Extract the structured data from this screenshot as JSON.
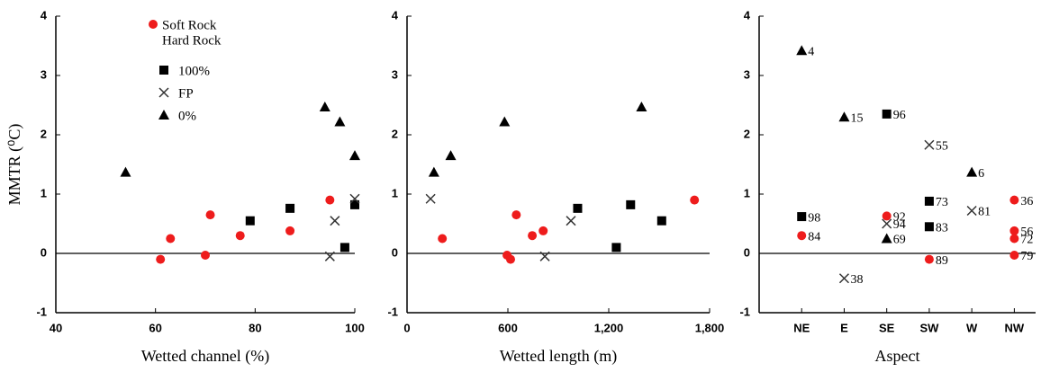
{
  "chart_data": [
    {
      "type": "scatter",
      "xlabel": "Wetted channel (%)",
      "ylabel": "MMTR (⁰C)",
      "xlim": [
        40,
        100
      ],
      "xticks": [
        40,
        60,
        80,
        100
      ],
      "ylim": [
        -1,
        4
      ],
      "yticks": [
        -1,
        0,
        1,
        2,
        3,
        4
      ],
      "hline": 0,
      "legend": "upper left",
      "legend_group_title": "Hard Rock",
      "series": [
        {
          "name": "Soft Rock",
          "color": "#ee1c1c",
          "marker": "circle",
          "x": [
            61,
            63,
            70,
            71,
            77,
            87,
            95
          ],
          "values": [
            -0.1,
            0.25,
            -0.03,
            0.65,
            0.3,
            0.38,
            0.9
          ]
        },
        {
          "name": "100%",
          "color": "#000000",
          "marker": "square",
          "x": [
            79,
            87,
            98,
            100
          ],
          "values": [
            0.55,
            0.76,
            0.1,
            0.82
          ]
        },
        {
          "name": "FP",
          "color": "#333333",
          "marker": "x",
          "x": [
            95,
            96,
            100
          ],
          "values": [
            -0.05,
            0.55,
            0.92
          ]
        },
        {
          "name": "0%",
          "color": "#000000",
          "marker": "triangle",
          "x": [
            54,
            94,
            97,
            100
          ],
          "values": [
            1.37,
            2.47,
            2.22,
            1.65
          ]
        }
      ]
    },
    {
      "type": "scatter",
      "xlabel": "Wetted length (m)",
      "xlim": [
        0,
        1800
      ],
      "xticks": [
        0,
        600,
        {
          "value": 1200,
          "label": "1,200"
        },
        {
          "value": 1800,
          "label": "1,800"
        }
      ],
      "ylim": [
        -1,
        4
      ],
      "yticks": [
        -1,
        0,
        1,
        2,
        3,
        4
      ],
      "hline": 0,
      "series": [
        {
          "color": "#ee1c1c",
          "marker": "circle",
          "x": [
            210,
            595,
            616,
            650,
            745,
            810,
            1710
          ],
          "values": [
            0.25,
            -0.03,
            -0.1,
            0.65,
            0.3,
            0.38,
            0.9
          ]
        },
        {
          "color": "#000000",
          "marker": "square",
          "x": [
            1015,
            1330,
            1245,
            1515
          ],
          "values": [
            0.76,
            0.82,
            0.1,
            0.55
          ]
        },
        {
          "color": "#333333",
          "marker": "x",
          "x": [
            140,
            820,
            975
          ],
          "values": [
            0.92,
            -0.05,
            0.55
          ]
        },
        {
          "color": "#000000",
          "marker": "triangle",
          "x": [
            160,
            260,
            580,
            1395
          ],
          "values": [
            1.37,
            1.65,
            2.22,
            2.47
          ]
        }
      ]
    },
    {
      "type": "category-scatter",
      "xlabel": "Aspect",
      "categories": [
        "NE",
        "E",
        "SE",
        "SW",
        "W",
        "NW"
      ],
      "ylim": [
        -1,
        4
      ],
      "yticks": [
        -1,
        0,
        1,
        2,
        3,
        4
      ],
      "hline": 0,
      "series": [
        {
          "color": "#ee1c1c",
          "marker": "circle",
          "x": [
            "NE",
            "SE",
            "SW",
            "NW",
            "NW",
            "NW",
            "NW"
          ],
          "values": [
            0.3,
            0.63,
            -0.1,
            0.9,
            0.38,
            0.25,
            -0.03
          ],
          "point_labels": [
            "84",
            "92",
            "89",
            "36",
            "56",
            "72",
            "79"
          ]
        },
        {
          "color": "#000000",
          "marker": "square",
          "x": [
            "NE",
            "SE",
            "SW",
            "SW"
          ],
          "values": [
            0.62,
            2.35,
            0.88,
            0.45
          ],
          "point_labels": [
            "98",
            "96",
            "73",
            "83"
          ]
        },
        {
          "color": "#333333",
          "marker": "x",
          "x": [
            "E",
            "SE",
            "SW",
            "W"
          ],
          "values": [
            -0.42,
            0.5,
            1.83,
            0.72
          ],
          "point_labels": [
            "38",
            "94",
            "55",
            "81"
          ]
        },
        {
          "color": "#000000",
          "marker": "triangle",
          "x": [
            "NE",
            "E",
            "SE",
            "W"
          ],
          "values": [
            3.42,
            2.3,
            0.25,
            1.37
          ],
          "point_labels": [
            "4",
            "15",
            "69",
            "6"
          ]
        }
      ]
    }
  ]
}
